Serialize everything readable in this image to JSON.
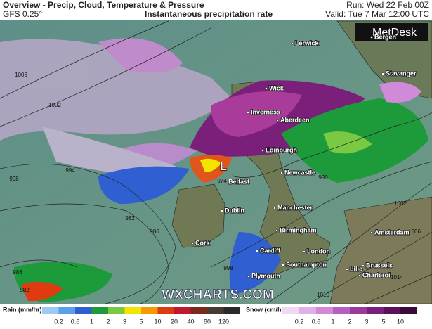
{
  "header": {
    "title": "Overview - Precip, Cloud, Temperature & Pressure",
    "model": "GFS 0.25°",
    "subtitle": "Instantaneous precipitation rate",
    "run": "Run: Wed 22 Feb 00Z",
    "valid": "Valid: Tue 7 Mar 12:00 UTC"
  },
  "logo": "MetDesk",
  "watermark": "WXCHARTS.COM",
  "low_label": "L",
  "cities": [
    "Lerwick",
    "Bergen",
    "Stavanger",
    "Wick",
    "Inverness",
    "Aberdeen",
    "Edinburgh",
    "Newcastle",
    "Belfast",
    "Dublin",
    "Manchester",
    "Birmingham",
    "Cork",
    "Cardiff",
    "London",
    "Southampton",
    "Plymouth",
    "Amsterdam",
    "Lille",
    "Brussels",
    "Charleroi"
  ],
  "isobar_labels": [
    1006,
    1002,
    998,
    994,
    982,
    986,
    986,
    982,
    974,
    990,
    998,
    1002,
    1006,
    1010,
    1014
  ],
  "legend": {
    "rain_title": "Rain (mm/hr)",
    "rain_values": [
      0.2,
      0.6,
      1,
      2,
      3,
      5,
      10,
      20,
      40,
      80,
      120
    ],
    "snow_title": "Snow (cm/hr)",
    "snow_values": [
      0.2,
      0.6,
      1,
      2,
      3,
      5,
      10
    ]
  }
}
